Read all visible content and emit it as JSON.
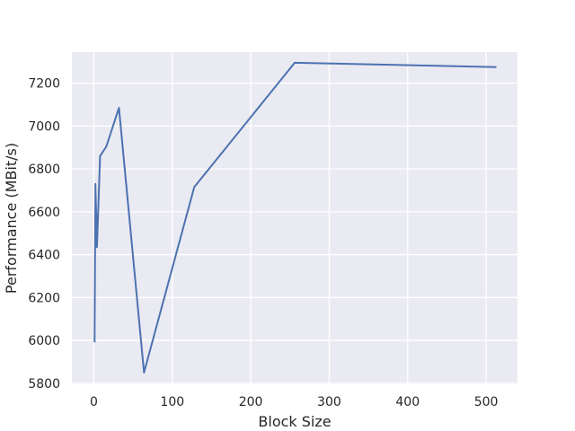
{
  "chart_data": {
    "type": "line",
    "title": "",
    "xlabel": "Block Size",
    "ylabel": "Performance (MBit/s)",
    "xlim": [
      -28,
      540
    ],
    "ylim": [
      5795,
      7345
    ],
    "xticks": [
      0,
      100,
      200,
      300,
      400,
      500
    ],
    "yticks": [
      5800,
      6000,
      6200,
      6400,
      6600,
      6800,
      7000,
      7200
    ],
    "grid": true,
    "background": "#eaeaf2",
    "grid_color": "#ffffff",
    "series": [
      {
        "color": "#4c72b0",
        "x": [
          1,
          2,
          4,
          8,
          16,
          32,
          64,
          128,
          256,
          512
        ],
        "y": [
          5995,
          6730,
          6435,
          6860,
          6905,
          7085,
          5850,
          6715,
          7295,
          7275
        ]
      }
    ]
  }
}
